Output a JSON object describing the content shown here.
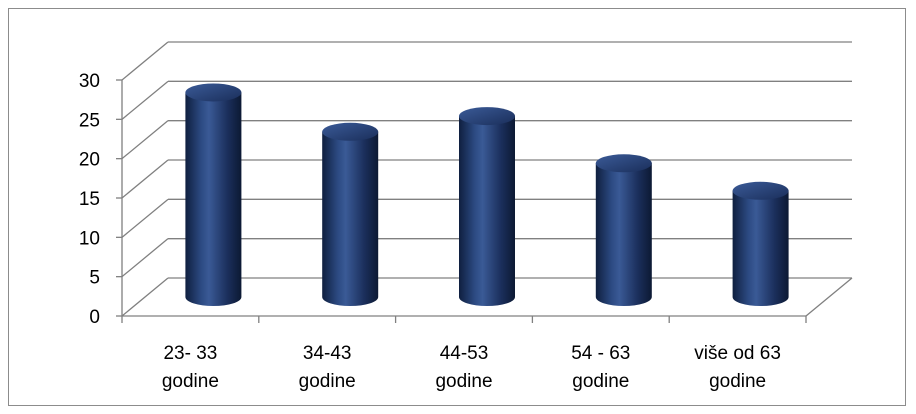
{
  "chart_data": {
    "type": "bar",
    "style": "3d-cylinder",
    "categories": [
      [
        "23- 33",
        "godine"
      ],
      [
        "34-43",
        "godine"
      ],
      [
        "44-53",
        "godine"
      ],
      [
        "54 - 63",
        "godine"
      ],
      [
        "više od 63",
        "godine"
      ]
    ],
    "values": [
      26,
      21,
      23,
      17,
      13.5
    ],
    "yticks": [
      "0",
      "5",
      "10",
      "15",
      "20",
      "25",
      "30"
    ],
    "ylim": [
      0,
      30
    ],
    "title": "",
    "xlabel": "",
    "ylabel": "",
    "grid": true,
    "legend": "none",
    "colors": {
      "bar": "#1f3864",
      "bar_highlight": "#4a6aa8",
      "bar_dark": "#0f1f3f",
      "grid": "#808080",
      "frame": "#8c8c8c"
    }
  }
}
